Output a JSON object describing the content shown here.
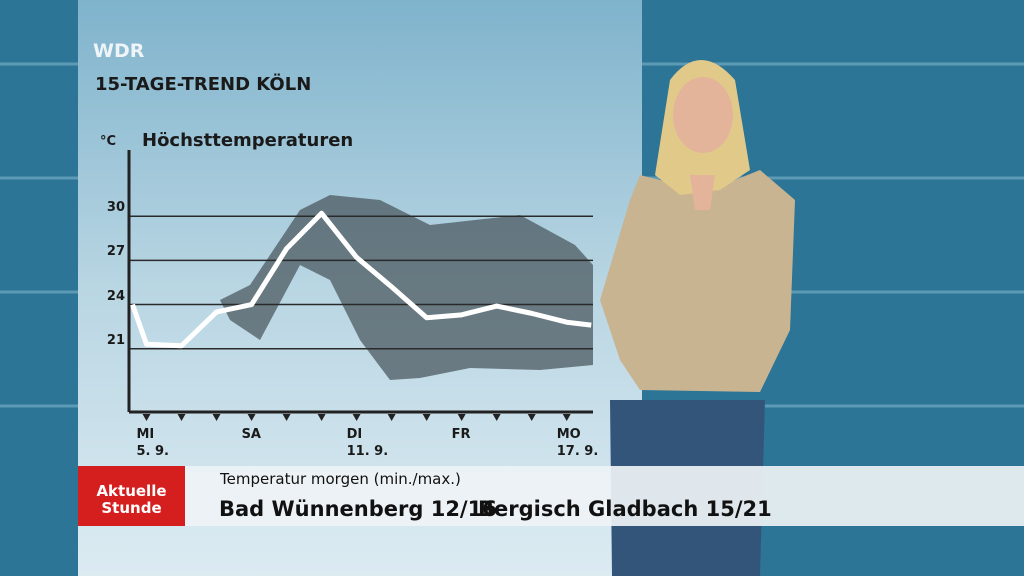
{
  "channel": "WDR",
  "chart_data": {
    "type": "line",
    "title": "15-TAGE-TREND KÖLN",
    "subtitle": "Höchsttemperaturen",
    "y_unit": "°C",
    "x": [
      -0.4,
      0,
      1,
      2,
      3,
      4,
      5,
      6,
      7,
      8,
      9,
      10,
      11,
      12,
      12.7
    ],
    "values": [
      24.0,
      21.3,
      21.2,
      23.5,
      24.0,
      27.8,
      30.2,
      27.2,
      25.2,
      23.1,
      23.3,
      23.9,
      23.4,
      22.8,
      22.6
    ],
    "color": "#ffffff",
    "xlim": [
      -0.5,
      12.75
    ],
    "xticks": [
      {
        "value": 0,
        "label": "MI\n5. 9."
      },
      {
        "value": 1,
        "label": ""
      },
      {
        "value": 2,
        "label": ""
      },
      {
        "value": 3,
        "label": "SA"
      },
      {
        "value": 4,
        "label": ""
      },
      {
        "value": 5,
        "label": ""
      },
      {
        "value": 6,
        "label": "DI\n11. 9."
      },
      {
        "value": 7,
        "label": ""
      },
      {
        "value": 8,
        "label": ""
      },
      {
        "value": 9,
        "label": "FR"
      },
      {
        "value": 10,
        "label": ""
      },
      {
        "value": 11,
        "label": ""
      },
      {
        "value": 12,
        "label": "MO\n17. 9."
      }
    ],
    "ylim": [
      16.7,
      34.5
    ],
    "yticks": [
      21,
      24,
      27,
      30
    ],
    "grid": true
  },
  "ticker": {
    "logo": "Aktuelle\nStunde",
    "heading": "Temperatur morgen (min./max.)",
    "items": [
      "Bad Wünnenberg 12/16",
      "Bergisch Gladbach 15/21"
    ]
  }
}
